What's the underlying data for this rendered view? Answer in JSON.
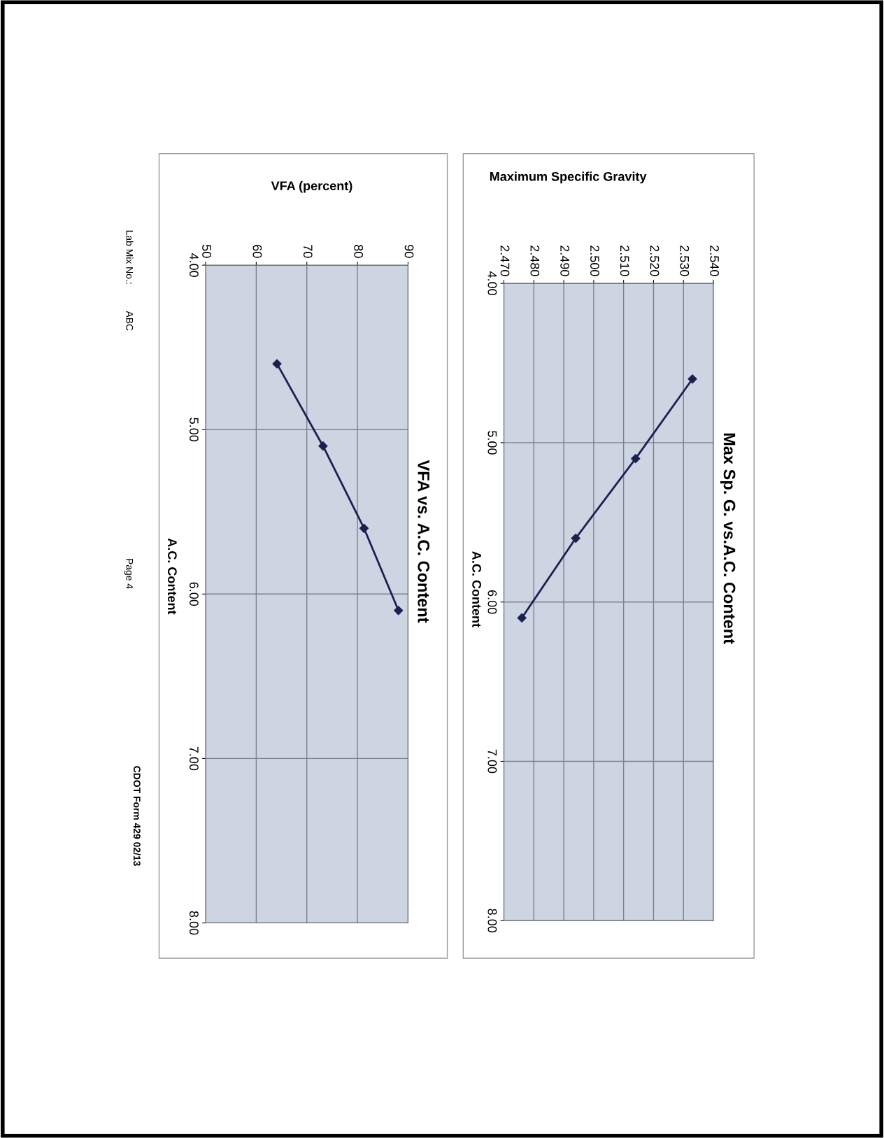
{
  "chart_data": [
    {
      "type": "line",
      "title": "Max Sp. G. vs.A.C. Content",
      "ylabel": "A.C. Content",
      "xlabel": "Maximum Specific Gravity",
      "x": [
        2.533,
        2.514,
        2.494,
        2.476
      ],
      "series": [
        {
          "color": "#1c2050",
          "values": [
            4.6,
            5.1,
            5.6,
            6.1
          ]
        }
      ],
      "ylim": [
        8.0,
        4.0
      ],
      "yticks": [
        {
          "value": 4.0,
          "label": "4.00"
        },
        {
          "value": 5.0,
          "label": "5.00"
        },
        {
          "value": 6.0,
          "label": "6.00"
        },
        {
          "value": 7.0,
          "label": "7.00"
        },
        {
          "value": 8.0,
          "label": "8.00"
        }
      ],
      "xlim": [
        2.47,
        2.54
      ],
      "xticks": [
        {
          "value": 2.47,
          "label": "2.470"
        },
        {
          "value": 2.48,
          "label": "2.480"
        },
        {
          "value": 2.49,
          "label": "2.490"
        },
        {
          "value": 2.5,
          "label": "2.500"
        },
        {
          "value": 2.51,
          "label": "2.510"
        },
        {
          "value": 2.52,
          "label": "2.520"
        },
        {
          "value": 2.53,
          "label": "2.530"
        },
        {
          "value": 2.54,
          "label": "2.540"
        }
      ],
      "grid": true,
      "marker": "diamond",
      "line_style": "solid"
    },
    {
      "type": "line",
      "title": "VFA vs. A.C. Content",
      "ylabel": "A.C. Content",
      "xlabel": "VFA (percent)",
      "x": [
        64.1,
        73.2,
        81.3,
        88.1
      ],
      "series": [
        {
          "color": "#1c2050",
          "values": [
            4.6,
            5.1,
            5.6,
            6.1
          ]
        }
      ],
      "ylim": [
        8.0,
        4.0
      ],
      "yticks": [
        {
          "value": 4.0,
          "label": "4.00"
        },
        {
          "value": 5.0,
          "label": "5.00"
        },
        {
          "value": 6.0,
          "label": "6.00"
        },
        {
          "value": 7.0,
          "label": "7.00"
        },
        {
          "value": 8.0,
          "label": "8.00"
        }
      ],
      "xlim": [
        50,
        90
      ],
      "xticks": [
        50,
        60,
        70,
        80,
        90
      ],
      "grid": true,
      "marker": "diamond",
      "line_style": "solid",
      "annotations": [
        "Lab Mix No.:",
        "ABC",
        "Page 4",
        "CDOT Form 429 02/13"
      ]
    }
  ]
}
